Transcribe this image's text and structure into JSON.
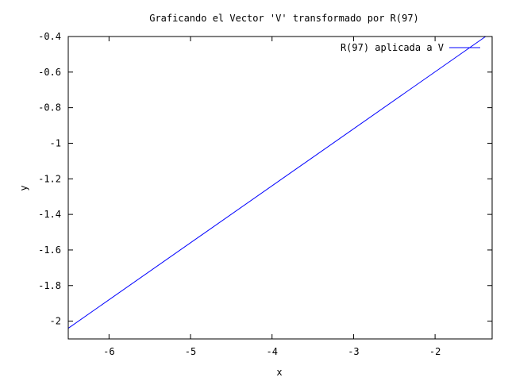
{
  "chart_data": {
    "type": "line",
    "title": "Graficando el Vector 'V' transformado por R(97)",
    "xlabel": "x",
    "ylabel": "y",
    "xlim": [
      -6.5,
      -1.3
    ],
    "ylim": [
      -2.1,
      -0.4
    ],
    "xticks": [
      -6,
      -5,
      -4,
      -3,
      -2
    ],
    "xtick_labels": [
      "-6",
      "-5",
      "-4",
      "-3",
      "-2"
    ],
    "yticks": [
      -2,
      -1.8,
      -1.6,
      -1.4,
      -1.2,
      -1,
      -0.8,
      -0.6,
      -0.4
    ],
    "ytick_labels": [
      "-2",
      "-1.8",
      "-1.6",
      "-1.4",
      "-1.2",
      "-1",
      "-0.8",
      "-0.6",
      "-0.4"
    ],
    "grid": false,
    "legend_position": "top-right",
    "series": [
      {
        "name": "R(97) aplicada a V",
        "color": "#0000ff",
        "x": [
          -6.5,
          -1.38
        ],
        "y": [
          -2.04,
          -0.4
        ]
      }
    ]
  }
}
